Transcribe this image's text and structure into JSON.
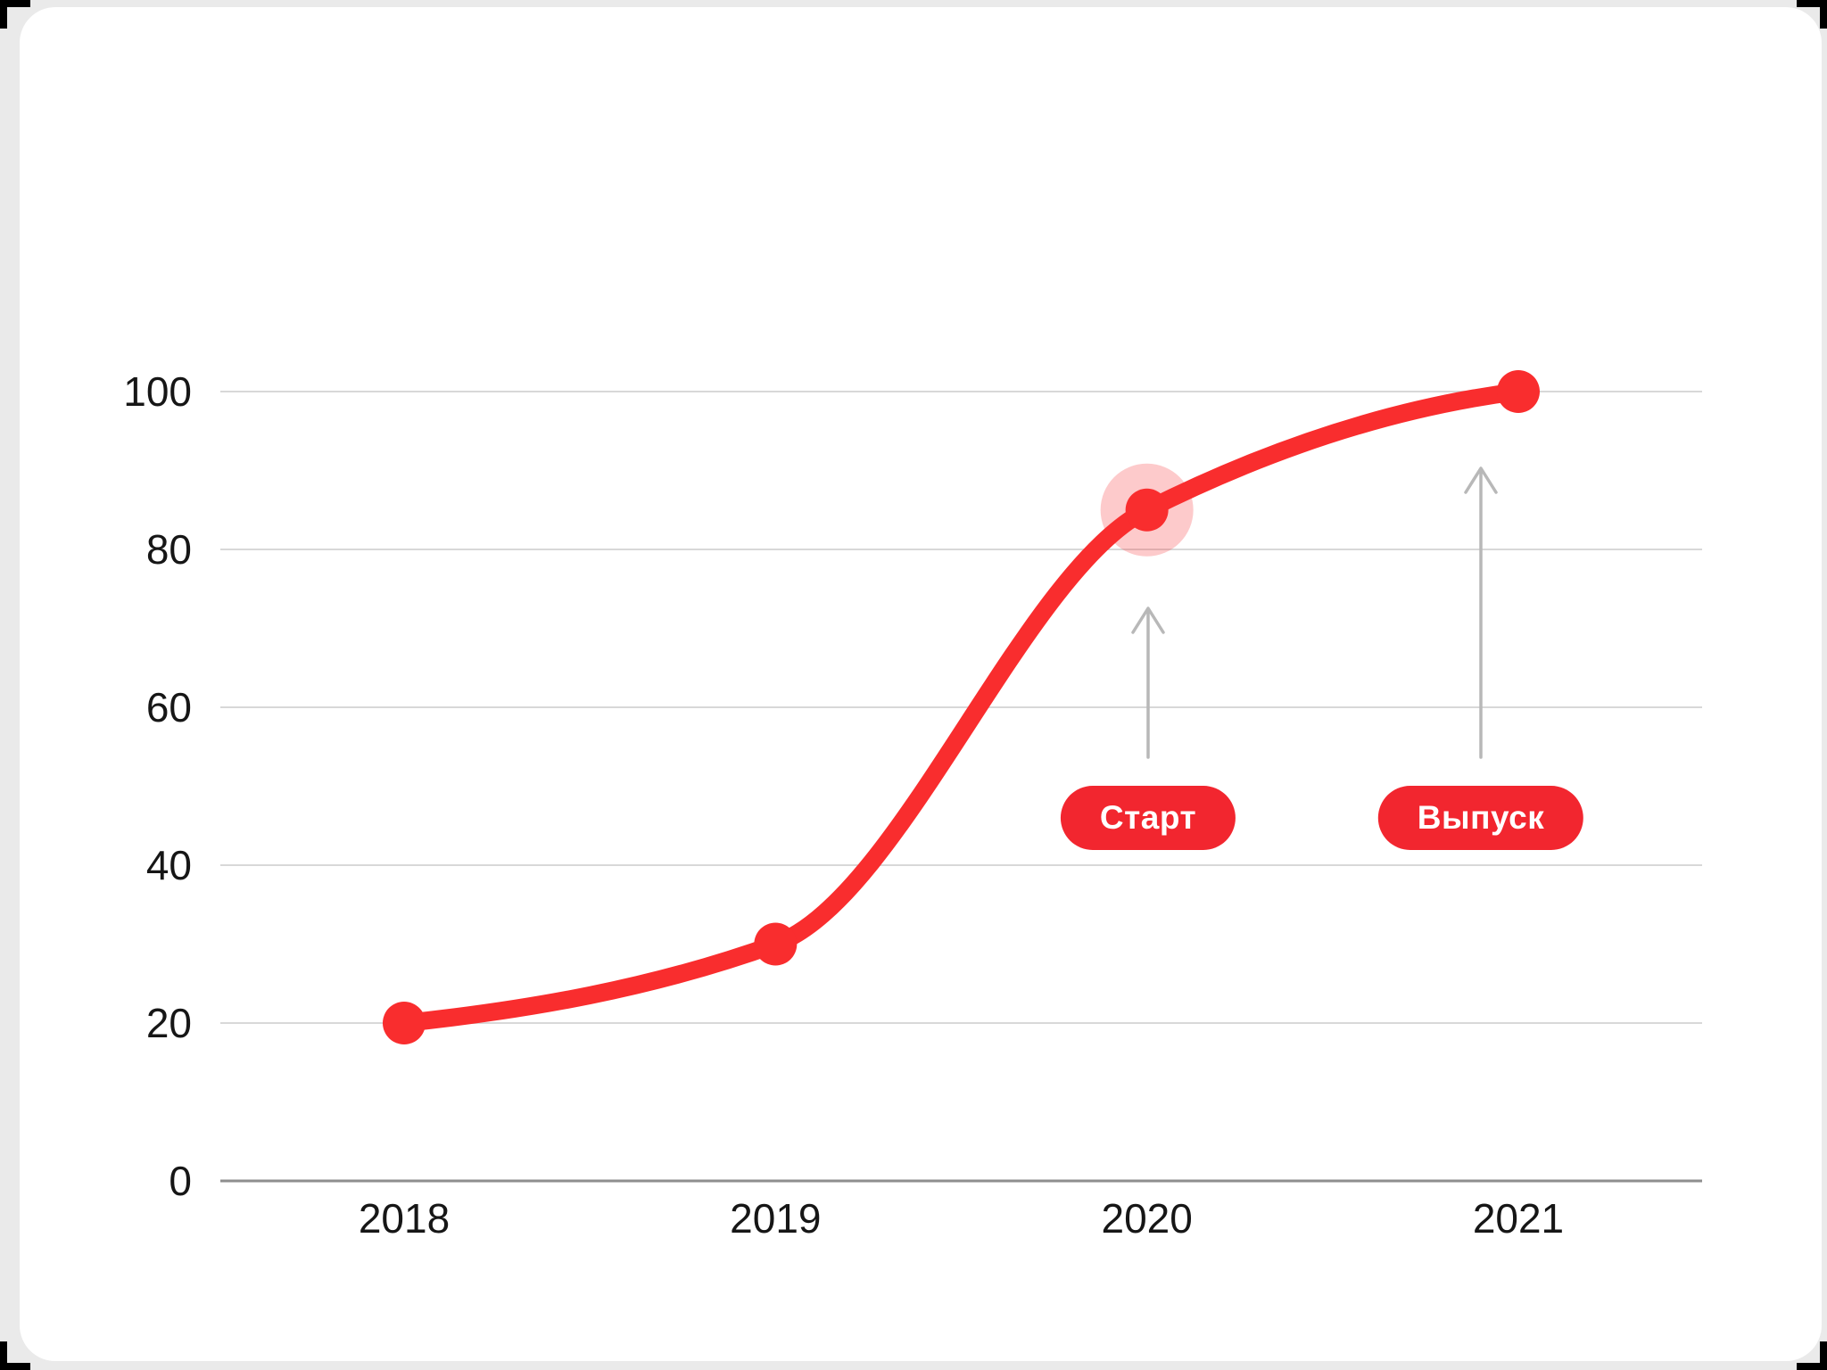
{
  "canvas": {
    "background_color": "#eaeaea",
    "card_color": "#ffffff",
    "crop_mark_color": "#000000"
  },
  "chart_data": {
    "type": "line",
    "title": "",
    "xlabel": "",
    "ylabel": "",
    "categories": [
      "2018",
      "2019",
      "2020",
      "2021"
    ],
    "values": [
      20,
      30,
      85,
      100
    ],
    "ylim": [
      0,
      100
    ],
    "yticks": [
      0,
      20,
      40,
      60,
      80,
      100
    ],
    "grid": "horizontal",
    "legend": "none",
    "line_color": "#f92d2e",
    "point_color": "#f92d2e",
    "highlight_halo": {
      "category": "2020",
      "color": "rgba(249,45,46,0.25)"
    },
    "axis": {
      "tick_label_color": "#161616",
      "gridline_color": "#d8d8d8",
      "zero_line_color": "#8e8e8e"
    },
    "annotations": [
      {
        "label": "Старт",
        "category": "2020",
        "badge_color": "#f2262f",
        "text_color": "#ffffff",
        "arrow_color": "#b8b8b8"
      },
      {
        "label": "Выпуск",
        "category": "2021",
        "badge_color": "#f2262f",
        "text_color": "#ffffff",
        "arrow_color": "#b8b8b8"
      }
    ]
  }
}
